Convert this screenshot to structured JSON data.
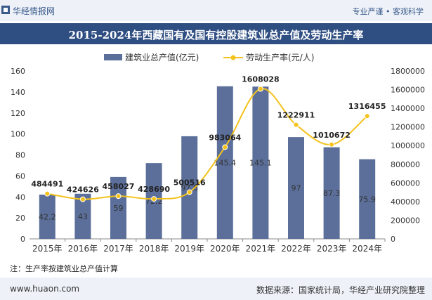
{
  "header": {
    "brand": "华经情报网",
    "tagline": "专业严谨 • 客观科学"
  },
  "title": "2015-2024年西藏国有及国有控股建筑业总产值及劳动生产率",
  "note": "注：生产率按建筑业总产值计算",
  "footer": {
    "site": "www.huaon.com",
    "source": "数据来源：国家统计局，华经产业研究院整理"
  },
  "colors": {
    "bar": "#5b6f9a",
    "line": "#f4c21c",
    "titlebar": "#2f4e82",
    "band": "#eef2f8"
  },
  "chart_data": {
    "type": "bar",
    "categories": [
      "2015年",
      "2016年",
      "2017年",
      "2018年",
      "2019年",
      "2020年",
      "2021年",
      "2022年",
      "2023年",
      "2024年"
    ],
    "series": [
      {
        "name": "建筑业总产值(亿元)",
        "type": "bar",
        "axis": "left",
        "values": [
          42.2,
          43,
          59,
          72.2,
          97.8,
          145.4,
          145.1,
          97,
          87.3,
          75.9
        ]
      },
      {
        "name": "劳动生产率(元/人)",
        "type": "line",
        "axis": "right",
        "values": [
          484491,
          424626,
          458027,
          428690,
          500516,
          983064,
          1608028,
          1222911,
          1010672,
          1316455
        ]
      }
    ],
    "y_left": {
      "min": 0,
      "max": 160,
      "ticks": [
        0,
        20,
        40,
        60,
        80,
        100,
        120,
        140,
        160
      ]
    },
    "y_right": {
      "min": 0,
      "max": 1800000,
      "ticks": [
        0,
        200000,
        400000,
        600000,
        800000,
        1000000,
        1200000,
        1400000,
        1600000,
        1800000
      ]
    },
    "legend_position": "top-center",
    "grid": false
  }
}
